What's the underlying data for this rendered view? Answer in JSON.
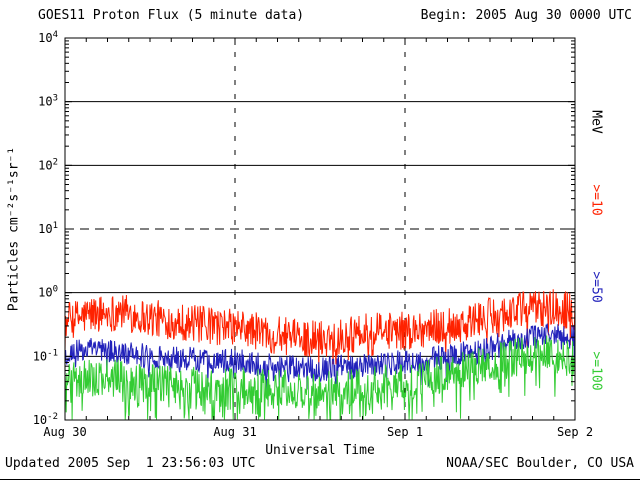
{
  "window": {
    "background": "#ffffff"
  },
  "header": {
    "title": "GOES11 Proton Flux (5 minute data)",
    "begin": "Begin: 2005 Aug 30 0000 UTC"
  },
  "footer": {
    "updated": "Updated 2005 Sep  1 23:56:03 UTC",
    "source": "NOAA/SEC Boulder, CO USA"
  },
  "chart_data": {
    "type": "line",
    "title": "GOES11 Proton Flux (5 minute data)",
    "xlabel": "Universal Time",
    "ylabel": "Particles  cm⁻²s⁻¹sr⁻¹",
    "x_range_hours": [
      0,
      72
    ],
    "x_ticks": [
      {
        "label": "Aug 30",
        "hour": 0
      },
      {
        "label": "Aug 31",
        "hour": 24
      },
      {
        "label": "Sep 1",
        "hour": 48
      },
      {
        "label": "Sep 2",
        "hour": 72
      }
    ],
    "y_scale": "log10",
    "ylim_log10": [
      -2,
      4
    ],
    "y_tick_exponents": [
      4,
      3,
      2,
      1,
      0,
      -1,
      -2
    ],
    "gridlines": {
      "hlines_solid_log10": [
        3,
        2,
        0,
        -1
      ],
      "hlines_dashed_log10": [
        1
      ],
      "vlines_dashed_hours": [
        24,
        48
      ]
    },
    "legend": {
      "unit_label": "MeV",
      "position": "right-rotated",
      "entries": [
        {
          "label": ">=10",
          "color": "#ff2200"
        },
        {
          "label": ">=50",
          "color": "#2222bb"
        },
        {
          "label": ">=100",
          "color": "#33cc33"
        }
      ]
    },
    "sample_interval_minutes": 5,
    "series": [
      {
        "name": "Protons >=10 MeV",
        "label": ">=10",
        "color": "#ff2200",
        "sample_hours": [
          0,
          4,
          8,
          12,
          16,
          20,
          24,
          28,
          32,
          36,
          40,
          44,
          48,
          52,
          56,
          60,
          64,
          68,
          72
        ],
        "log10_values": [
          -0.45,
          -0.33,
          -0.3,
          -0.4,
          -0.45,
          -0.52,
          -0.55,
          -0.62,
          -0.7,
          -0.72,
          -0.66,
          -0.6,
          -0.6,
          -0.55,
          -0.48,
          -0.38,
          -0.28,
          -0.22,
          -0.3
        ],
        "noise_log10": 0.3,
        "spike_down": {
          "probability": 0.08,
          "max_depth_log10": 0.35
        }
      },
      {
        "name": "Protons >=50 MeV",
        "label": ">=50",
        "color": "#2222bb",
        "sample_hours": [
          0,
          4,
          8,
          12,
          16,
          20,
          24,
          28,
          32,
          36,
          40,
          44,
          48,
          52,
          56,
          60,
          64,
          68,
          72
        ],
        "log10_values": [
          -0.95,
          -0.9,
          -0.95,
          -1.0,
          -1.03,
          -1.06,
          -1.08,
          -1.13,
          -1.18,
          -1.2,
          -1.16,
          -1.12,
          -1.1,
          -1.04,
          -0.97,
          -0.87,
          -0.74,
          -0.65,
          -0.7
        ],
        "noise_log10": 0.2,
        "spike_down": {
          "probability": 0.08,
          "max_depth_log10": 0.3
        }
      },
      {
        "name": "Protons >=100 MeV",
        "label": ">=100",
        "color": "#33cc33",
        "sample_hours": [
          0,
          4,
          8,
          12,
          16,
          20,
          24,
          28,
          32,
          36,
          40,
          44,
          48,
          52,
          56,
          60,
          64,
          68,
          72
        ],
        "log10_values": [
          -1.35,
          -1.31,
          -1.35,
          -1.4,
          -1.45,
          -1.48,
          -1.45,
          -1.5,
          -1.52,
          -1.55,
          -1.5,
          -1.44,
          -1.4,
          -1.31,
          -1.21,
          -1.1,
          -1.01,
          -0.95,
          -1.0
        ],
        "noise_log10": 0.3,
        "spike_down": {
          "probability": 0.3,
          "max_depth_log10": 0.55
        }
      }
    ]
  }
}
